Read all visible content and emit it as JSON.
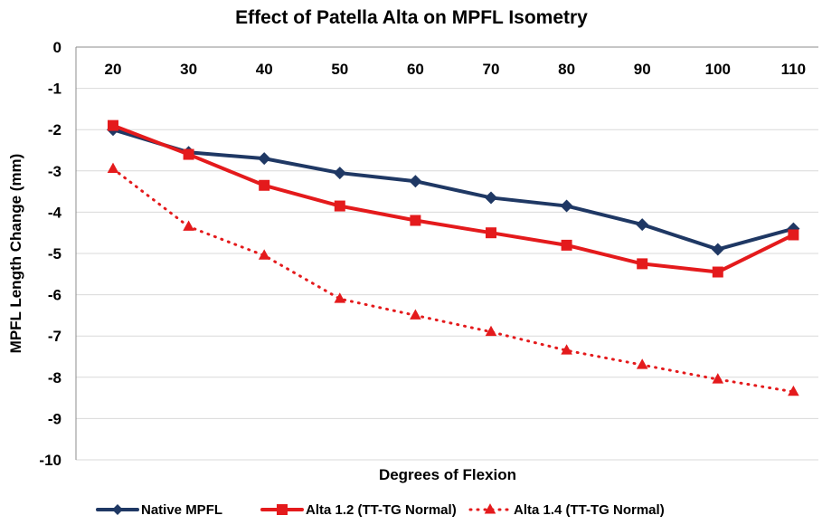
{
  "chart_data": {
    "type": "line",
    "title": "Effect of Patella Alta on MPFL Isometry",
    "xlabel": "Degrees of Flexion",
    "ylabel": "MPFL Length Change (mm)",
    "x": [
      20,
      30,
      40,
      50,
      60,
      70,
      80,
      90,
      100,
      110
    ],
    "x_tick_labels": [
      "20",
      "30",
      "40",
      "50",
      "60",
      "70",
      "80",
      "90",
      "100",
      "110"
    ],
    "ylim": [
      -10,
      0
    ],
    "y_ticks": [
      0,
      -1,
      -2,
      -3,
      -4,
      -5,
      -6,
      -7,
      -8,
      -9,
      -10
    ],
    "y_tick_labels": [
      "0",
      "-1",
      "-2",
      "-3",
      "-4",
      "-5",
      "-6",
      "-7",
      "-8",
      "-9",
      "-10"
    ],
    "grid": "horizontal",
    "legend_position": "bottom",
    "series": [
      {
        "name": "Native MPFL",
        "values": [
          -2.0,
          -2.55,
          -2.7,
          -3.05,
          -3.25,
          -3.65,
          -3.85,
          -4.3,
          -4.9,
          -4.4
        ],
        "color": "#1f3864",
        "marker": "diamond",
        "line_style": "solid"
      },
      {
        "name": "Alta 1.2 (TT-TG Normal)",
        "values": [
          -1.9,
          -2.6,
          -3.35,
          -3.85,
          -4.2,
          -4.5,
          -4.8,
          -5.25,
          -5.45,
          -4.55
        ],
        "color": "#e41a1c",
        "marker": "square",
        "line_style": "solid"
      },
      {
        "name": "Alta 1.4 (TT-TG Normal)",
        "values": [
          -2.95,
          -4.35,
          -5.05,
          -6.1,
          -6.5,
          -6.9,
          -7.35,
          -7.7,
          -8.05,
          -8.35
        ],
        "color": "#e41a1c",
        "marker": "triangle",
        "line_style": "dotted"
      }
    ]
  }
}
